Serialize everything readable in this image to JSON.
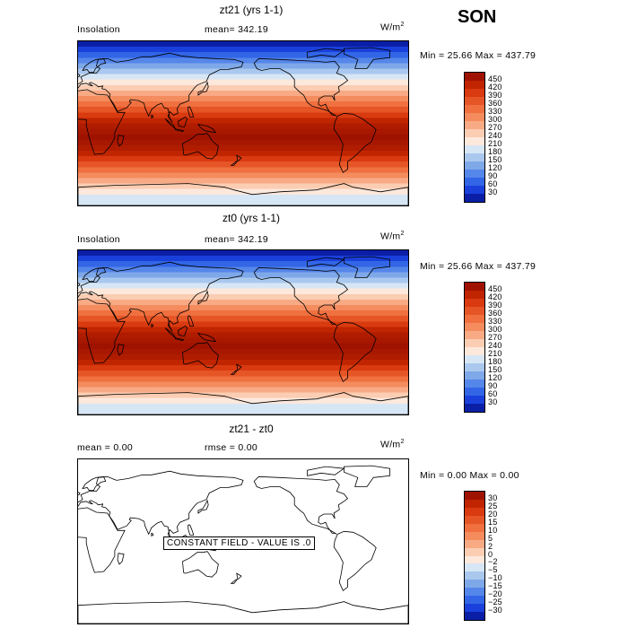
{
  "season": "SON",
  "panels": [
    {
      "title": "zt21 (yrs 1-1)",
      "left_label": "Insolation",
      "stat_label": "mean= 342.19",
      "stat2_label": "",
      "units": "W/m",
      "units_sup": "2",
      "minmax": "Min =  25.66 Max = 437.79",
      "constant_text": ""
    },
    {
      "title": "zt0 (yrs 1-1)",
      "left_label": "Insolation",
      "stat_label": "mean= 342.19",
      "stat2_label": "",
      "units": "W/m",
      "units_sup": "2",
      "minmax": "Min =  25.66 Max = 437.79",
      "constant_text": ""
    },
    {
      "title": "zt21 - zt0",
      "left_label": "mean =    0.00",
      "stat_label": "rmse =    0.00",
      "stat2_label": "",
      "units": "W/m",
      "units_sup": "2",
      "minmax": "Min =   0.00 Max =   0.00",
      "constant_text": "CONSTANT FIELD - VALUE IS .0"
    }
  ],
  "colorbar_abs": {
    "labels": [
      "450",
      "420",
      "390",
      "360",
      "330",
      "300",
      "270",
      "240",
      "210",
      "180",
      "150",
      "120",
      "90",
      "60",
      "30"
    ],
    "colors": [
      "#a01200",
      "#c02500",
      "#d93a10",
      "#e65526",
      "#f07040",
      "#f48c5e",
      "#f8aa85",
      "#fbcdb2",
      "#fde8dc",
      "#d6e6f5",
      "#aac8ee",
      "#7ea8e8",
      "#5586ea",
      "#3266e6",
      "#1a40dc",
      "#0a1fa6"
    ]
  },
  "colorbar_diff": {
    "labels": [
      "30",
      "25",
      "20",
      "15",
      "10",
      "5",
      "2",
      "0",
      "-2",
      "-5",
      "-10",
      "-15",
      "-20",
      "-25",
      "-30"
    ],
    "colors": [
      "#a01200",
      "#c02500",
      "#d93a10",
      "#e65526",
      "#f07040",
      "#f48c5e",
      "#f8aa85",
      "#fbcdb2",
      "#fde8dc",
      "#d6e6f5",
      "#aac8ee",
      "#7ea8e8",
      "#5586ea",
      "#3266e6",
      "#1a40dc",
      "#0a1fa6"
    ]
  },
  "field_bands": [
    "#0a1fa6",
    "#1a40dc",
    "#3266e6",
    "#5586ea",
    "#7ea8e8",
    "#aac8ee",
    "#d6e6f5",
    "#fde8dc",
    "#fbcdb2",
    "#f8aa85",
    "#f48c5e",
    "#f07040",
    "#e65526",
    "#d93a10",
    "#c02500",
    "#b01c00",
    "#a81800",
    "#a01200",
    "#a81800",
    "#b01c00",
    "#c02500",
    "#d93a10",
    "#e65526",
    "#f07040",
    "#f48c5e",
    "#f8aa85",
    "#fbcdb2",
    "#fde8dc",
    "#d6e6f5",
    "#d6e6f5"
  ]
}
